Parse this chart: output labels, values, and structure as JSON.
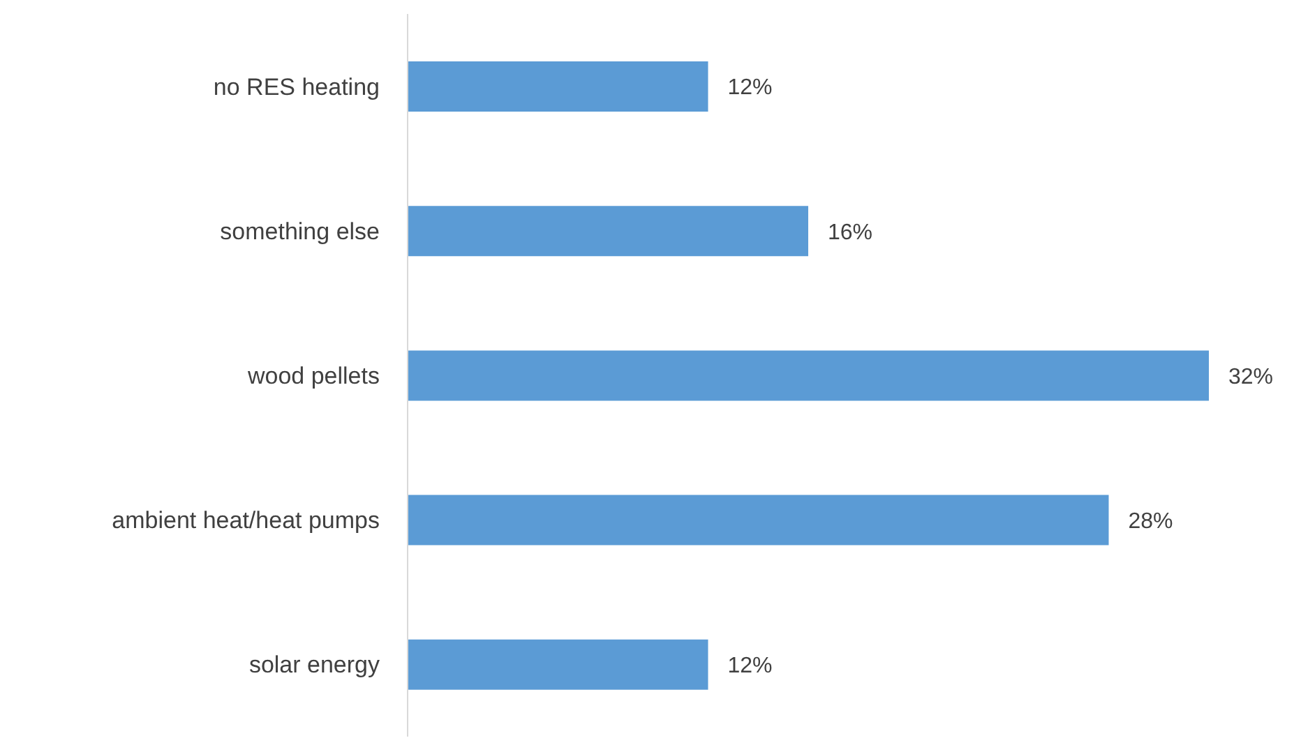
{
  "chart_data": {
    "type": "bar",
    "orientation": "horizontal",
    "categories": [
      "no RES heating",
      "something else",
      "wood pellets",
      "ambient heat/heat pumps",
      "solar energy"
    ],
    "values": [
      12,
      16,
      32,
      28,
      12
    ],
    "color": "#5b9bd5",
    "value_labels": [
      "12%",
      "16%",
      "32%",
      "28%",
      "12%"
    ],
    "tick_labels": "y",
    "grid": false
  }
}
